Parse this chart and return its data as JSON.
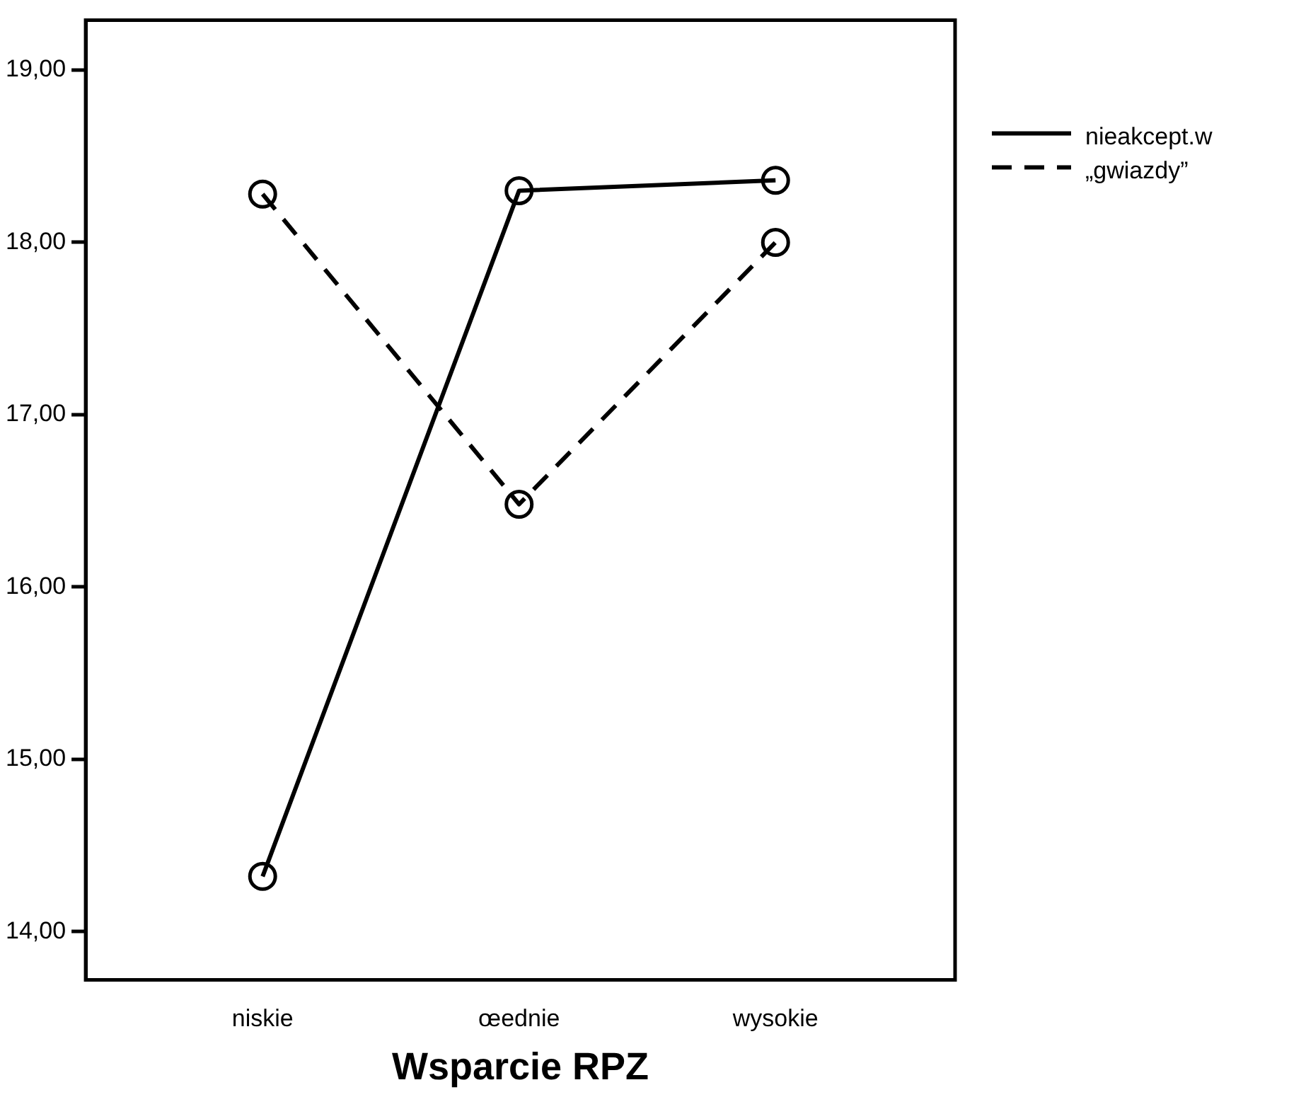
{
  "chart_data": {
    "type": "line",
    "xlabel": "Wsparcie RPZ",
    "categories": [
      "niskie",
      "œednie",
      "wysokie"
    ],
    "series": [
      {
        "name": "nieakcept.w",
        "color": "#000000",
        "values": [
          14.32,
          18.3,
          18.36
        ],
        "line_style": "solid"
      },
      {
        "name": "„gwiazdy”",
        "color": "#000000",
        "values": [
          18.28,
          16.48,
          18.0
        ],
        "line_style": "dashed"
      }
    ],
    "ylim": [
      13.72,
      19.29
    ],
    "yticks": [
      {
        "value": 14,
        "label": "14,00"
      },
      {
        "value": 15,
        "label": "15,00"
      },
      {
        "value": 16,
        "label": "16,00"
      },
      {
        "value": 17,
        "label": "17,00"
      },
      {
        "value": 18,
        "label": "18,00"
      },
      {
        "value": 19,
        "label": "19,00"
      }
    ],
    "grid": false,
    "legend": "top right",
    "marker": "circle"
  }
}
